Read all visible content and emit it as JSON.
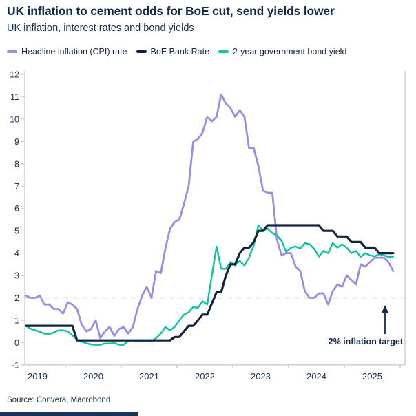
{
  "header": {
    "title": "UK inflation to cement odds for BoE cut, send yields lower",
    "subtitle": "UK inflation, interest rates and bond yields"
  },
  "legend": [
    {
      "label": "Headline inflation (CPI) rate",
      "color": "#9b8ce4"
    },
    {
      "label": "BoE Bank Rate",
      "color": "#14223c"
    },
    {
      "label": "2-year government bond yield",
      "color": "#10c3a4"
    }
  ],
  "annotation": {
    "text": "2% inflation target",
    "arrow_icon": "up-arrow"
  },
  "source": "Source: Convera, Macrobond",
  "chart_data": {
    "type": "line",
    "title": "UK inflation to cement odds for BoE cut, send yields lower",
    "subtitle": "UK inflation, interest rates and bond yields",
    "x_start_year_month": "2019-04",
    "x_step": "monthly",
    "x_tick_years": [
      2019,
      2020,
      2021,
      2022,
      2023,
      2024,
      2025
    ],
    "ylim": [
      -1,
      12
    ],
    "y_ticks": [
      -1,
      0,
      1,
      2,
      3,
      4,
      5,
      6,
      7,
      8,
      9,
      10,
      11,
      12
    ],
    "grid": "off",
    "target_line_value": 2,
    "legend_position": "top",
    "series": [
      {
        "name": "Headline inflation (CPI) rate",
        "color": "#9b8ce4",
        "width": 2.8,
        "values": [
          2.1,
          2.0,
          2.0,
          2.1,
          1.7,
          1.7,
          1.5,
          1.5,
          1.3,
          1.8,
          1.7,
          1.5,
          0.8,
          0.5,
          0.6,
          1.0,
          0.2,
          0.5,
          0.7,
          0.3,
          0.6,
          0.7,
          0.4,
          0.7,
          1.5,
          2.1,
          2.5,
          2.0,
          3.2,
          3.1,
          4.2,
          5.1,
          5.4,
          5.5,
          6.2,
          7.0,
          9.0,
          9.1,
          9.4,
          10.1,
          9.9,
          10.1,
          11.1,
          10.7,
          10.5,
          10.1,
          10.4,
          10.1,
          8.7,
          8.7,
          7.9,
          6.8,
          6.7,
          6.7,
          4.6,
          3.9,
          4.0,
          4.0,
          3.4,
          3.2,
          2.3,
          2.0,
          2.0,
          2.2,
          2.2,
          1.7,
          2.3,
          2.6,
          2.5,
          3.0,
          2.8,
          2.6,
          3.5,
          3.4,
          3.6,
          3.8,
          3.8,
          3.8,
          3.6,
          3.2
        ]
      },
      {
        "name": "2-year government bond yield",
        "color": "#10c3a4",
        "width": 2.5,
        "values": [
          0.75,
          0.62,
          0.55,
          0.48,
          0.4,
          0.38,
          0.45,
          0.55,
          0.55,
          0.5,
          0.32,
          0.12,
          0.04,
          -0.03,
          -0.08,
          -0.1,
          -0.1,
          -0.04,
          -0.04,
          -0.02,
          -0.1,
          -0.1,
          0.08,
          0.1,
          0.06,
          0.06,
          0.06,
          0.05,
          0.2,
          0.4,
          0.7,
          0.55,
          0.7,
          1.0,
          1.25,
          1.35,
          1.6,
          1.55,
          1.85,
          1.7,
          3.0,
          4.3,
          3.3,
          3.3,
          3.6,
          3.45,
          3.65,
          3.45,
          3.8,
          4.35,
          5.25,
          5.0,
          5.1,
          4.9,
          4.8,
          4.55,
          4.05,
          4.25,
          4.3,
          4.2,
          4.45,
          4.4,
          4.2,
          3.85,
          4.1,
          4.0,
          4.45,
          4.25,
          4.4,
          4.25,
          4.0,
          4.1,
          3.83,
          4.0,
          3.9,
          3.86,
          3.95,
          3.9,
          3.83,
          3.85
        ]
      },
      {
        "name": "BoE Bank Rate",
        "color": "#14223c",
        "width": 3.2,
        "values": [
          0.75,
          0.75,
          0.75,
          0.75,
          0.75,
          0.75,
          0.75,
          0.75,
          0.75,
          0.75,
          0.75,
          0.1,
          0.1,
          0.1,
          0.1,
          0.1,
          0.1,
          0.1,
          0.1,
          0.1,
          0.1,
          0.1,
          0.1,
          0.1,
          0.1,
          0.1,
          0.1,
          0.1,
          0.1,
          0.1,
          0.1,
          0.1,
          0.25,
          0.25,
          0.5,
          0.75,
          0.75,
          1.0,
          1.25,
          1.25,
          1.75,
          2.25,
          2.25,
          3.0,
          3.5,
          3.5,
          4.0,
          4.25,
          4.25,
          4.5,
          5.0,
          5.0,
          5.25,
          5.25,
          5.25,
          5.25,
          5.25,
          5.25,
          5.25,
          5.25,
          5.25,
          5.25,
          5.25,
          5.25,
          5.0,
          5.0,
          5.0,
          4.75,
          4.75,
          4.75,
          4.5,
          4.5,
          4.5,
          4.25,
          4.25,
          4.25,
          4.0,
          4.0,
          4.0,
          4.0
        ]
      }
    ]
  }
}
